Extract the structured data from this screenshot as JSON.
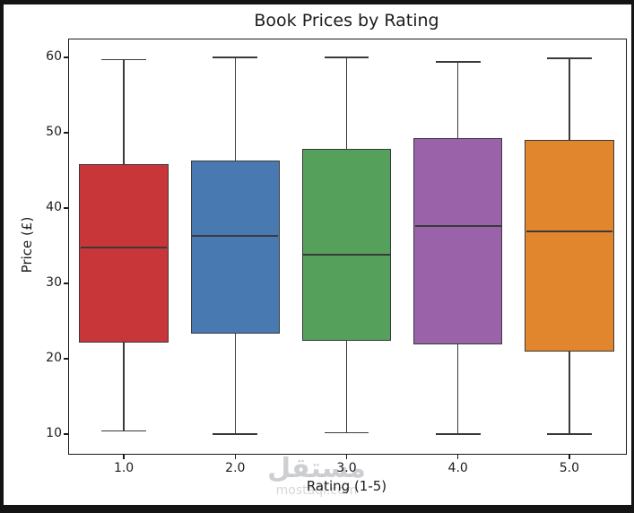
{
  "chart_data": {
    "type": "boxplot",
    "title": "Book Prices by Rating",
    "xlabel": "Rating (1-5)",
    "ylabel": "Price (£)",
    "categories": [
      "1.0",
      "2.0",
      "3.0",
      "4.0",
      "5.0"
    ],
    "y_ticks": [
      10,
      20,
      30,
      40,
      50,
      60
    ],
    "ylim": [
      7.5,
      62.5
    ],
    "grid": false,
    "legend": "none",
    "series": [
      {
        "category": "1.0",
        "whisker_low": 10.4,
        "q1": 22.2,
        "median": 34.8,
        "q3": 45.8,
        "whisker_high": 59.7,
        "color": "#c93639"
      },
      {
        "category": "2.0",
        "whisker_low": 10.0,
        "q1": 23.3,
        "median": 36.3,
        "q3": 46.3,
        "whisker_high": 60.0,
        "color": "#4879b0"
      },
      {
        "category": "3.0",
        "whisker_low": 10.2,
        "q1": 22.4,
        "median": 33.8,
        "q3": 47.8,
        "whisker_high": 60.0,
        "color": "#55a05a"
      },
      {
        "category": "4.0",
        "whisker_low": 10.0,
        "q1": 21.9,
        "median": 37.6,
        "q3": 49.3,
        "whisker_high": 59.4,
        "color": "#9a62a8"
      },
      {
        "category": "5.0",
        "whisker_low": 10.0,
        "q1": 21.0,
        "median": 36.9,
        "q3": 49.0,
        "whisker_high": 59.9,
        "color": "#e1862d"
      }
    ],
    "box_edge_color": "#3a3a3a"
  },
  "watermark": {
    "logo_text": "مستقل",
    "domain_text": "mostaql.com",
    "color": "#c8c8c8"
  },
  "frame": {
    "border_color": "#141414",
    "background": "#ffffff"
  }
}
